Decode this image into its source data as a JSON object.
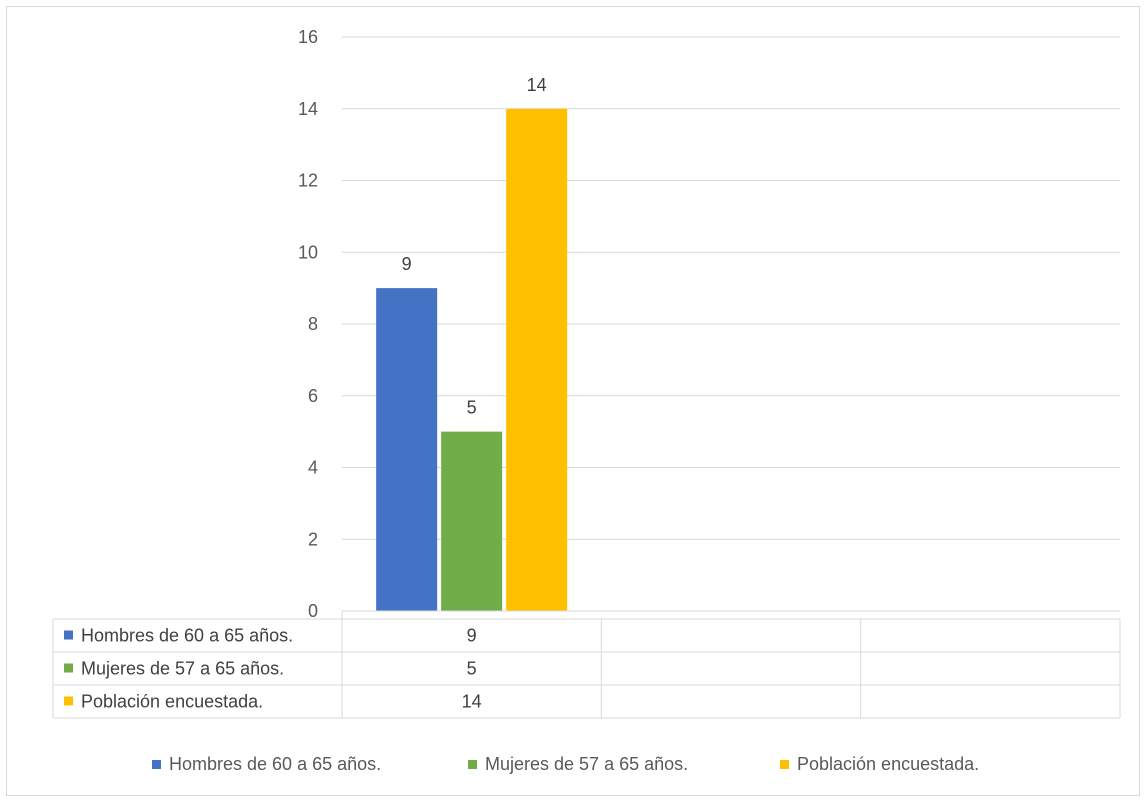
{
  "chart_data": {
    "type": "bar",
    "categories": [
      ""
    ],
    "series": [
      {
        "name": "Hombres de 60 a 65 años.",
        "values": [
          9
        ],
        "color": "#4472C4"
      },
      {
        "name": "Mujeres de 57 a 65 años.",
        "values": [
          5
        ],
        "color": "#70AD47"
      },
      {
        "name": "Población encuestada.",
        "values": [
          14
        ],
        "color": "#FFC000"
      }
    ],
    "ylim": [
      0,
      16
    ],
    "yticks": [
      0,
      2,
      4,
      6,
      8,
      10,
      12,
      14,
      16
    ],
    "grid": true,
    "data_table": true,
    "data_table_empty_columns": 2,
    "legend": "bottom",
    "title": "",
    "xlabel": "",
    "ylabel": ""
  }
}
